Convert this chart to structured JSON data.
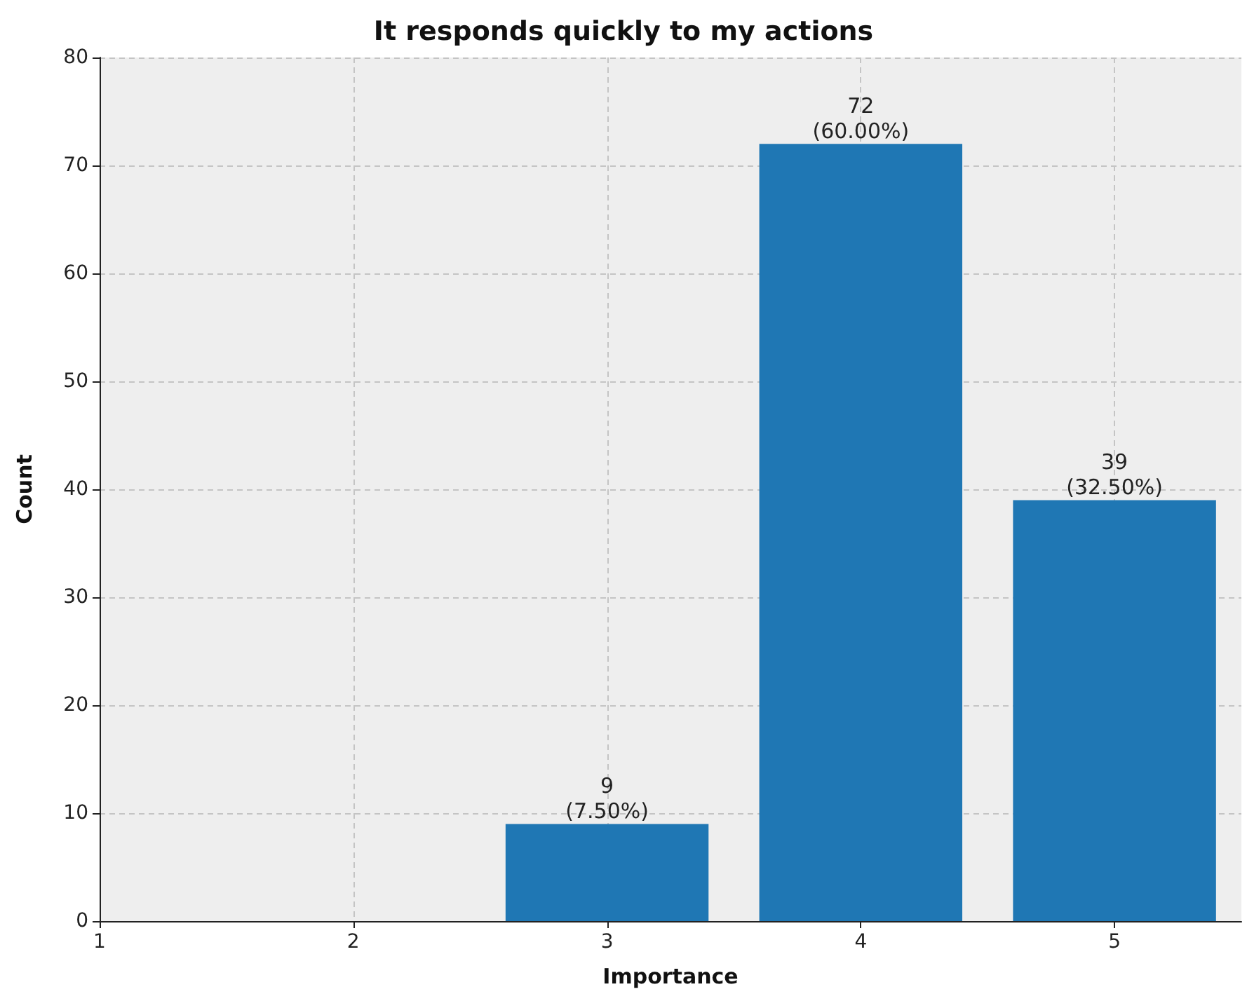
{
  "chart_data": {
    "type": "bar",
    "title": "It responds quickly to my actions",
    "xlabel": "Importance",
    "ylabel": "Count",
    "x": [
      3,
      4,
      5
    ],
    "values": [
      9,
      72,
      39
    ],
    "color": "#1f77b4",
    "value_labels": [
      "9\n(7.50%)",
      "72\n(60.00%)",
      "39\n(32.50%)"
    ],
    "xlim": [
      1,
      5.5
    ],
    "xticks": [
      1,
      2,
      3,
      4,
      5
    ],
    "ylim": [
      0,
      80
    ],
    "yticks": [
      0,
      10,
      20,
      30,
      40,
      50,
      60,
      70,
      80
    ],
    "grid": true
  }
}
